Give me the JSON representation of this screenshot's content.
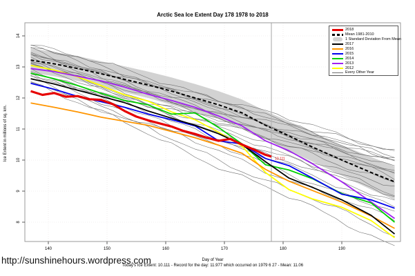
{
  "title": "Arctic Sea Ice Extent Day 178 1978 to 2018",
  "ylabel": "Ice Extent in millions of sq. km.",
  "footer": {
    "url": "http://sunshinehours.wordpress.com",
    "xlabel": "Day of Year",
    "caption": "Today's Ice Extent: 10.111  - Record for the day: 11.977 which occurred on 1979 6 27  - Mean: 11.06"
  },
  "annotation": {
    "text": "10.111",
    "day": 178.6,
    "value": 10.06,
    "color": "#e60000"
  },
  "legend": [
    {
      "label": "2018",
      "color": "#e60000",
      "type": "thick"
    },
    {
      "label": "Mean 1981-2010",
      "color": "#000000",
      "type": "dashed"
    },
    {
      "label": "1 Standard Deviation From Mean",
      "color": "#d2d2d2",
      "type": "band"
    },
    {
      "label": "2017",
      "color": "#000000",
      "type": "line"
    },
    {
      "label": "2016",
      "color": "#ff9500",
      "type": "line"
    },
    {
      "label": "2015",
      "color": "#0000ee",
      "type": "line"
    },
    {
      "label": "2014",
      "color": "#00d000",
      "type": "line"
    },
    {
      "label": "2013",
      "color": "#a020f0",
      "type": "line"
    },
    {
      "label": "2012",
      "color": "#ffff00",
      "type": "line"
    },
    {
      "label": "Every Other Year",
      "color": "#6e6e6e",
      "type": "thin"
    }
  ],
  "chart_data": {
    "type": "line",
    "title": "Arctic Sea Ice Extent Day 178 1978 to 2018",
    "xlabel": "Day of Year",
    "ylabel": "Ice Extent in millions of sq. km.",
    "xlim": [
      136,
      200
    ],
    "ylim": [
      7.38,
      14.42
    ],
    "xticks": [
      140,
      150,
      160,
      170,
      180,
      190
    ],
    "yticks": [
      8,
      9,
      10,
      11,
      12,
      13,
      14
    ],
    "grid": true,
    "legend_position": "top-right",
    "vline_day": 178,
    "days": [
      137,
      141,
      145,
      149,
      153,
      157,
      161,
      165,
      169,
      173,
      177,
      181,
      185,
      190,
      195,
      199
    ],
    "band": {
      "name": "1 Standard Deviation From Mean",
      "color": "#d2d2d2",
      "upper": [
        13.6,
        13.48,
        13.35,
        13.18,
        13.02,
        12.85,
        12.66,
        12.45,
        12.22,
        11.95,
        11.58,
        11.25,
        10.9,
        10.48,
        10.1,
        9.8
      ],
      "lower": [
        12.82,
        12.7,
        12.55,
        12.38,
        12.18,
        12.0,
        11.78,
        11.55,
        11.32,
        11.08,
        10.68,
        10.3,
        9.95,
        9.5,
        9.05,
        8.72
      ]
    },
    "mean": {
      "name": "Mean 1981-2010",
      "color": "#000000",
      "values": [
        13.22,
        13.1,
        12.95,
        12.78,
        12.6,
        12.42,
        12.22,
        12.0,
        11.78,
        11.52,
        11.12,
        10.78,
        10.42,
        10.0,
        9.6,
        9.3
      ]
    },
    "series": [
      {
        "name": "2012",
        "color": "#ffff00",
        "width": 1.8,
        "values": [
          13.05,
          12.9,
          12.68,
          12.4,
          12.1,
          11.9,
          11.55,
          11.3,
          10.9,
          10.45,
          9.6,
          9.05,
          8.75,
          8.48,
          8.05,
          7.5
        ]
      },
      {
        "name": "2013",
        "color": "#a020f0",
        "width": 1.8,
        "values": [
          12.95,
          12.85,
          12.7,
          12.55,
          12.35,
          12.12,
          11.92,
          11.7,
          11.42,
          11.1,
          10.62,
          10.3,
          9.88,
          9.3,
          8.65,
          8.12
        ]
      },
      {
        "name": "2014",
        "color": "#00d000",
        "width": 1.8,
        "values": [
          12.8,
          12.62,
          12.4,
          12.15,
          11.92,
          11.78,
          11.48,
          11.52,
          11.05,
          10.52,
          9.85,
          9.68,
          9.4,
          8.92,
          8.62,
          8.0
        ]
      },
      {
        "name": "2015",
        "color": "#0000ee",
        "width": 1.8,
        "values": [
          12.47,
          12.28,
          12.05,
          11.88,
          11.7,
          11.48,
          11.3,
          11.1,
          10.62,
          10.52,
          10.05,
          9.82,
          9.42,
          8.9,
          8.72,
          8.45
        ]
      },
      {
        "name": "2016",
        "color": "#ff9500",
        "width": 1.8,
        "values": [
          11.84,
          11.7,
          11.55,
          11.38,
          11.25,
          11.12,
          10.92,
          10.72,
          10.48,
          10.22,
          9.7,
          9.32,
          9.02,
          8.65,
          8.2,
          7.8
        ]
      },
      {
        "name": "2017",
        "color": "#000000",
        "width": 1.8,
        "values": [
          12.62,
          12.45,
          12.25,
          12.05,
          11.85,
          11.58,
          11.35,
          11.12,
          10.85,
          10.5,
          9.95,
          9.42,
          9.12,
          8.72,
          8.22,
          7.62
        ]
      }
    ],
    "series_2018": {
      "name": "2018",
      "color": "#e60000",
      "width": 3.2,
      "days": [
        137,
        139,
        141,
        143,
        145,
        147,
        149,
        151,
        153,
        155,
        157,
        159,
        161,
        163,
        165,
        167,
        169,
        171,
        173,
        175,
        177,
        178
      ],
      "values": [
        12.22,
        12.1,
        12.16,
        12.04,
        12.06,
        11.96,
        11.94,
        11.8,
        11.58,
        11.4,
        11.28,
        11.18,
        11.08,
        10.94,
        10.84,
        10.72,
        10.62,
        10.68,
        10.5,
        10.34,
        10.17,
        10.111
      ]
    },
    "every_other_year": {
      "name": "Every Other Year",
      "color": "#6e6e6e",
      "width": 0.6,
      "lines": [
        {
          "start": 13.78,
          "end": 10.3,
          "seed": 1
        },
        {
          "start": 13.7,
          "end": 10.1,
          "seed": 2
        },
        {
          "start": 13.62,
          "end": 10.25,
          "seed": 3
        },
        {
          "start": 13.55,
          "end": 9.95,
          "seed": 4
        },
        {
          "start": 13.5,
          "end": 10.05,
          "seed": 5
        },
        {
          "start": 13.45,
          "end": 9.8,
          "seed": 6
        },
        {
          "start": 13.4,
          "end": 9.6,
          "seed": 7
        },
        {
          "start": 13.35,
          "end": 9.9,
          "seed": 8
        },
        {
          "start": 13.3,
          "end": 9.45,
          "seed": 9
        },
        {
          "start": 13.25,
          "end": 9.7,
          "seed": 10
        },
        {
          "start": 13.18,
          "end": 9.3,
          "seed": 11
        },
        {
          "start": 13.15,
          "end": 8.85,
          "seed": 21
        },
        {
          "start": 13.1,
          "end": 9.12,
          "seed": 12
        },
        {
          "start": 13.02,
          "end": 9.5,
          "seed": 13
        },
        {
          "start": 12.95,
          "end": 8.9,
          "seed": 14
        },
        {
          "start": 12.88,
          "end": 8.7,
          "seed": 15
        },
        {
          "start": 12.8,
          "end": 8.55,
          "seed": 16
        },
        {
          "start": 12.72,
          "end": 8.3,
          "seed": 17
        },
        {
          "start": 12.7,
          "end": 9.95,
          "seed": 22
        },
        {
          "start": 12.65,
          "end": 8.05,
          "seed": 18
        },
        {
          "start": 12.6,
          "end": 7.6,
          "seed": 19
        },
        {
          "start": 12.55,
          "end": 7.25,
          "seed": 20
        }
      ]
    }
  }
}
